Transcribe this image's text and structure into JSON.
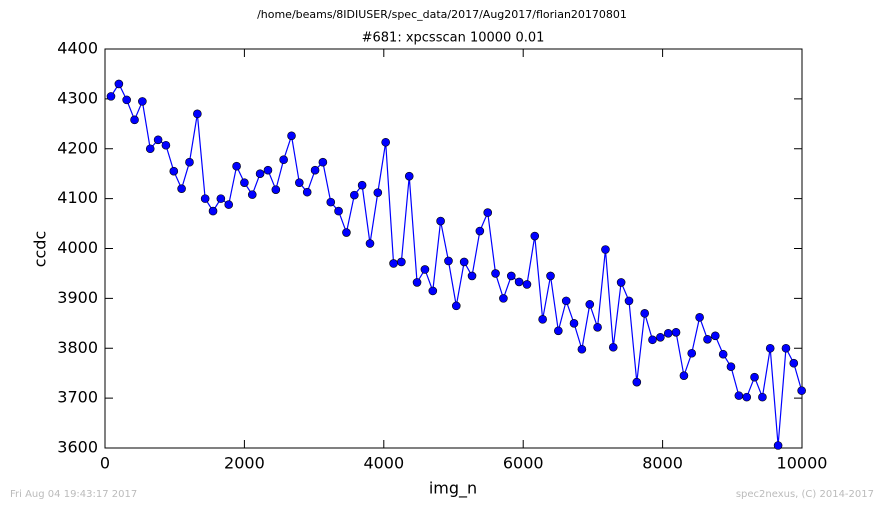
{
  "chart_data": {
    "type": "line",
    "suptitle": "/home/beams/8IDIUSER/spec_data/2017/Aug2017/florian20170801",
    "title": "#681: xpcsscan 10000 0.01",
    "xlabel": "img_n",
    "ylabel": "ccdc",
    "footer_left": "Fri Aug 04 19:43:17 2017",
    "footer_right": "spec2nexus, (C) 2014-2017",
    "xlim": [
      0,
      10000
    ],
    "xticks": [
      0,
      2000,
      4000,
      6000,
      8000,
      10000
    ],
    "ylim": [
      3600,
      4400
    ],
    "yticks": [
      3600,
      3700,
      3800,
      3900,
      4000,
      4100,
      4200,
      4300,
      4400
    ],
    "x": [
      86,
      199,
      311,
      424,
      536,
      649,
      762,
      874,
      987,
      1099,
      1212,
      1325,
      1437,
      1550,
      1662,
      1775,
      1888,
      2000,
      2113,
      2225,
      2338,
      2451,
      2563,
      2676,
      2788,
      2901,
      3014,
      3126,
      3239,
      3351,
      3464,
      3577,
      3689,
      3802,
      3914,
      4027,
      4140,
      4252,
      4365,
      4477,
      4590,
      4703,
      4815,
      4928,
      5040,
      5153,
      5266,
      5378,
      5491,
      5603,
      5716,
      5829,
      5941,
      6054,
      6166,
      6279,
      6392,
      6504,
      6617,
      6729,
      6842,
      6955,
      7067,
      7180,
      7292,
      7405,
      7518,
      7630,
      7743,
      7855,
      7968,
      8081,
      8193,
      8306,
      8418,
      8531,
      8644,
      8756,
      8869,
      8981,
      9094,
      9207,
      9319,
      9432,
      9544,
      9657,
      9770,
      9882,
      9995
    ],
    "series": [
      {
        "color": "#0000ff",
        "values": [
          4305,
          4330,
          4298,
          4258,
          4295,
          4200,
          4218,
          4207,
          4155,
          4120,
          4173,
          4270,
          4100,
          4075,
          4100,
          4088,
          4165,
          4132,
          4108,
          4150,
          4157,
          4118,
          4178,
          4226,
          4132,
          4113,
          4157,
          4173,
          4093,
          4075,
          4032,
          4107,
          4127,
          4010,
          4112,
          4213,
          3970,
          3973,
          4145,
          3932,
          3958,
          3915,
          4055,
          3975,
          3885,
          3973,
          3945,
          4035,
          4072,
          3950,
          3900,
          3945,
          3933,
          3928,
          4025,
          3858,
          3945,
          3835,
          3895,
          3850,
          3798,
          3888,
          3842,
          3998,
          3802,
          3932,
          3895,
          3732,
          3870,
          3817,
          3822,
          3830,
          3832,
          3745,
          3790,
          3862,
          3818,
          3825,
          3788,
          3763,
          3705,
          3702,
          3742,
          3702,
          3800,
          3605,
          3800,
          3770,
          3715
        ]
      }
    ]
  }
}
